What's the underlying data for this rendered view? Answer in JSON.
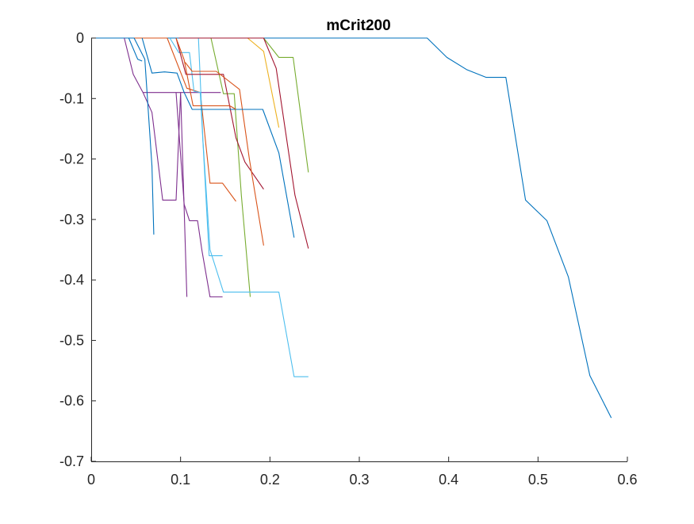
{
  "chart_data": {
    "type": "line",
    "title": "mCrit200",
    "xlabel": "",
    "ylabel": "",
    "xlim": [
      0,
      0.6
    ],
    "ylim": [
      -0.7,
      0
    ],
    "x_ticks": [
      0,
      0.1,
      0.2,
      0.3,
      0.4,
      0.5,
      0.6
    ],
    "x_tick_labels": [
      "0",
      "0.1",
      "0.2",
      "0.3",
      "0.4",
      "0.5",
      "0.6"
    ],
    "y_ticks": [
      0,
      -0.1,
      -0.2,
      -0.3,
      -0.4,
      -0.5,
      -0.6,
      -0.7
    ],
    "y_tick_labels": [
      "0",
      "-0.1",
      "-0.2",
      "-0.3",
      "-0.4",
      "-0.5",
      "-0.6",
      "-0.7"
    ],
    "grid": false,
    "legend": "none",
    "series": [
      {
        "color": "#0072BD",
        "x": [
          0,
          0.376,
          0.398,
          0.42,
          0.442,
          0.464,
          0.486,
          0.51,
          0.534,
          0.558,
          0.582
        ],
        "y": [
          0,
          0,
          -0.032,
          -0.052,
          -0.065,
          -0.065,
          -0.268,
          -0.302,
          -0.395,
          -0.558,
          -0.628
        ]
      },
      {
        "color": "#D95319",
        "x": [
          0.048,
          0.085,
          0.107,
          0.122,
          0.133,
          0.147,
          0.162
        ],
        "y": [
          0,
          0,
          -0.083,
          -0.09,
          -0.24,
          -0.24,
          -0.27
        ]
      },
      {
        "color": "#EDB120",
        "x": [
          0.175,
          0.193,
          0.21
        ],
        "y": [
          0,
          -0.022,
          -0.148
        ]
      },
      {
        "color": "#7E2F8E",
        "x": [
          0.037,
          0.047,
          0.058,
          0.068,
          0.08,
          0.095,
          0.105,
          0.11,
          0.12,
          0.128,
          0.135,
          0.145
        ],
        "y": [
          0,
          -0.06,
          -0.09,
          -0.09,
          -0.09,
          -0.09,
          -0.09,
          -0.09,
          -0.09,
          -0.09,
          -0.09,
          -0.09
        ]
      },
      {
        "color": "#7E2F8E",
        "x": [
          0.058,
          0.068,
          0.08,
          0.095,
          0.1,
          0.107
        ],
        "y": [
          -0.09,
          -0.123,
          -0.268,
          -0.268,
          -0.09,
          -0.428
        ]
      },
      {
        "color": "#7E2F8E",
        "x": [
          0.095,
          0.104,
          0.11,
          0.119,
          0.124,
          0.133,
          0.147
        ],
        "y": [
          -0.09,
          -0.275,
          -0.302,
          -0.302,
          -0.352,
          -0.428,
          -0.428
        ]
      },
      {
        "color": "#77AC30",
        "x": [
          0.134,
          0.148,
          0.16,
          0.168,
          0.178
        ],
        "y": [
          0,
          -0.092,
          -0.092,
          -0.26,
          -0.428
        ]
      },
      {
        "color": "#77AC30",
        "x": [
          0.175,
          0.193,
          0.21,
          0.226,
          0.243
        ],
        "y": [
          0,
          0,
          -0.032,
          -0.032,
          -0.222
        ]
      },
      {
        "color": "#4DBEEE",
        "x": [
          0.088,
          0.098,
          0.11,
          0.115,
          0.122,
          0.132,
          0.147
        ],
        "y": [
          0,
          -0.024,
          -0.024,
          -0.088,
          -0.09,
          -0.36,
          -0.36
        ]
      },
      {
        "color": "#4DBEEE",
        "x": [
          0.12,
          0.125,
          0.133,
          0.148,
          0.17,
          0.21,
          0.227,
          0.243
        ],
        "y": [
          0,
          -0.168,
          -0.35,
          -0.42,
          -0.42,
          -0.42,
          -0.56,
          -0.56
        ]
      },
      {
        "color": "#A2142F",
        "x": [
          0.095,
          0.106,
          0.118,
          0.148,
          0.162,
          0.172,
          0.193
        ],
        "y": [
          0,
          -0.06,
          -0.06,
          -0.06,
          -0.165,
          -0.205,
          -0.25
        ]
      },
      {
        "color": "#A2142F",
        "x": [
          0.098,
          0.162,
          0.175,
          0.193,
          0.207,
          0.228,
          0.243
        ],
        "y": [
          0,
          0,
          0,
          0,
          -0.05,
          -0.26,
          -0.348
        ]
      },
      {
        "color": "#D95319",
        "x": [
          0.105,
          0.113,
          0.14,
          0.166,
          0.177,
          0.193
        ],
        "y": [
          -0.04,
          -0.055,
          -0.055,
          -0.085,
          -0.2,
          -0.343
        ]
      },
      {
        "color": "#0072BD",
        "x": [
          0.057,
          0.068,
          0.082,
          0.096,
          0.104,
          0.113,
          0.133,
          0.148,
          0.165,
          0.182,
          0.192,
          0.21,
          0.227
        ],
        "y": [
          0,
          -0.058,
          -0.056,
          -0.058,
          -0.09,
          -0.118,
          -0.118,
          -0.118,
          -0.118,
          -0.118,
          -0.118,
          -0.19,
          -0.33
        ]
      },
      {
        "color": "#0072BD",
        "x": [
          0.048,
          0.06,
          0.068,
          0.07
        ],
        "y": [
          0,
          -0.035,
          -0.212,
          -0.325
        ]
      },
      {
        "color": "#0072BD",
        "x": [
          0.042,
          0.052,
          0.057
        ],
        "y": [
          0,
          -0.035,
          -0.038
        ]
      },
      {
        "color": "#D95319",
        "x": [
          0.095,
          0.104,
          0.114,
          0.14,
          0.155,
          0.162
        ],
        "y": [
          0,
          -0.036,
          -0.112,
          -0.112,
          -0.112,
          -0.118
        ]
      }
    ]
  }
}
